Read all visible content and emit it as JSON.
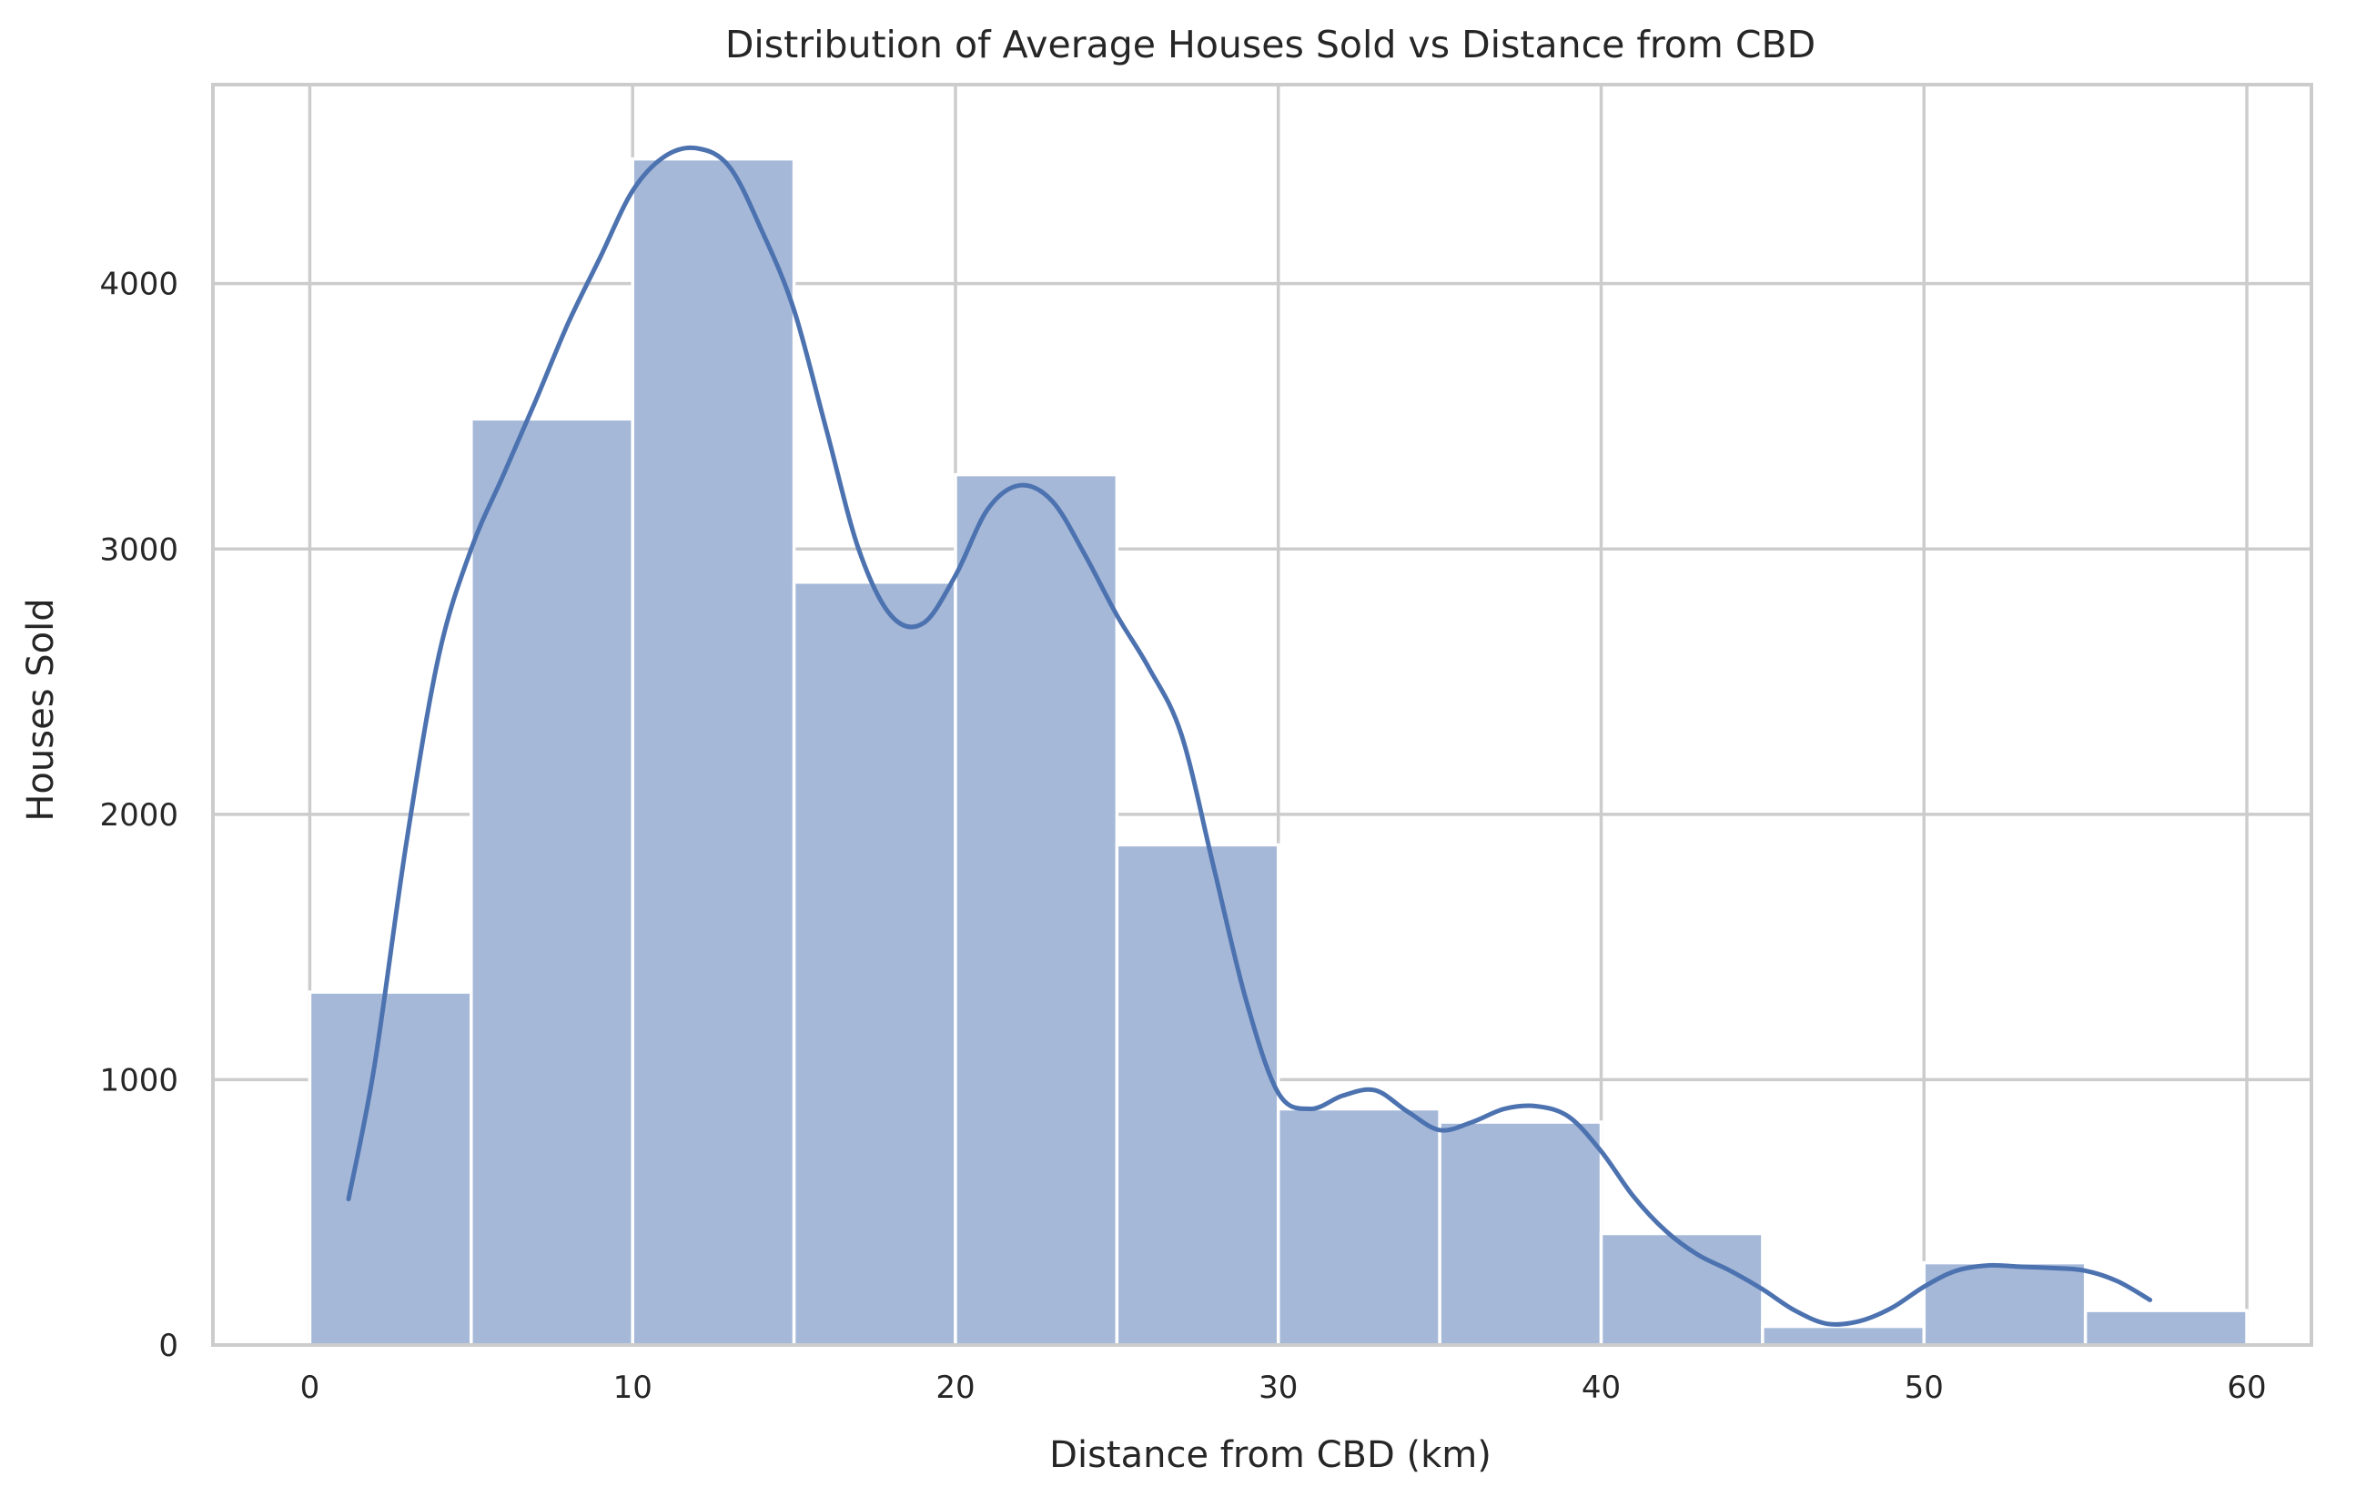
{
  "chart_data": {
    "type": "bar",
    "title": "Distribution of Average Houses Sold  vs Distance from CBD",
    "xlabel": "Distance from CBD (km)",
    "ylabel": "Houses Sold",
    "bins": [
      {
        "start": 0,
        "end": 5,
        "value": 1330
      },
      {
        "start": 5,
        "end": 10,
        "value": 3490
      },
      {
        "start": 10,
        "end": 15,
        "value": 4470
      },
      {
        "start": 15,
        "end": 20,
        "value": 2875
      },
      {
        "start": 20,
        "end": 25,
        "value": 3280
      },
      {
        "start": 25,
        "end": 30,
        "value": 1885
      },
      {
        "start": 30,
        "end": 35,
        "value": 890
      },
      {
        "start": 35,
        "end": 40,
        "value": 840
      },
      {
        "start": 40,
        "end": 45,
        "value": 420
      },
      {
        "start": 45,
        "end": 50,
        "value": 70
      },
      {
        "start": 50,
        "end": 55,
        "value": 310
      },
      {
        "start": 55,
        "end": 60,
        "value": 130
      }
    ],
    "kde": {
      "x": [
        1.2,
        2,
        3,
        4,
        5,
        6,
        7,
        8,
        9,
        10,
        11,
        12,
        13,
        14,
        15,
        16,
        17,
        18,
        19,
        20,
        21,
        22,
        23,
        24,
        25,
        26,
        27,
        28,
        29,
        30,
        31,
        32,
        33,
        34,
        35,
        36,
        37,
        38,
        39,
        40,
        41,
        42,
        43,
        44,
        45,
        46,
        47,
        48,
        49,
        50,
        51,
        52,
        53,
        54,
        55,
        56,
        57
      ],
      "y": [
        550,
        1050,
        1900,
        2600,
        3000,
        3280,
        3560,
        3850,
        4100,
        4350,
        4480,
        4510,
        4440,
        4200,
        3900,
        3450,
        3000,
        2750,
        2720,
        2900,
        3150,
        3240,
        3180,
        2980,
        2750,
        2550,
        2300,
        1800,
        1300,
        950,
        890,
        940,
        960,
        880,
        810,
        840,
        890,
        900,
        860,
        730,
        560,
        430,
        340,
        280,
        210,
        130,
        80,
        90,
        140,
        220,
        280,
        300,
        295,
        290,
        280,
        240,
        170
      ]
    },
    "xlim": [
      -3,
      62
    ],
    "ylim": [
      0,
      4750
    ],
    "xticks": [
      0,
      10,
      20,
      30,
      40,
      50,
      60
    ],
    "yticks": [
      0,
      1000,
      2000,
      3000,
      4000
    ],
    "grid": true,
    "colors": {
      "bar": "#a5b8d8",
      "line": "#4c72b0",
      "grid": "#cccccc",
      "frame": "#cccccc"
    }
  }
}
